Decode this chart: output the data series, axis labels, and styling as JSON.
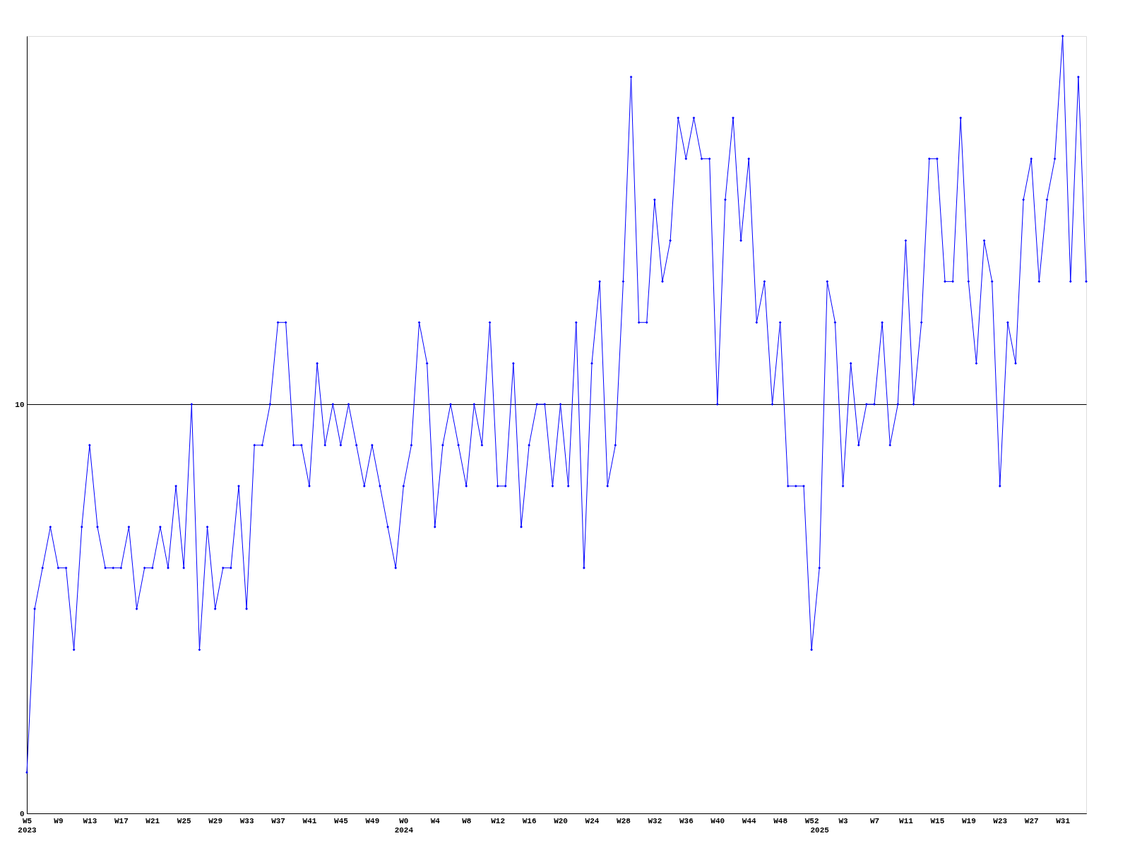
{
  "chart_data": {
    "type": "line",
    "categories": [
      "W5\n2023",
      null,
      null,
      null,
      "W9",
      null,
      null,
      null,
      "W13",
      null,
      null,
      null,
      "W17",
      null,
      null,
      null,
      "W21",
      null,
      null,
      null,
      "W25",
      null,
      null,
      null,
      "W29",
      null,
      null,
      null,
      "W33",
      null,
      null,
      null,
      "W37",
      null,
      null,
      null,
      "W41",
      null,
      null,
      null,
      "W45",
      null,
      null,
      null,
      "W49",
      null,
      null,
      null,
      "W0\n2024",
      null,
      null,
      null,
      "W4",
      null,
      null,
      null,
      "W8",
      null,
      null,
      null,
      "W12",
      null,
      null,
      null,
      "W16",
      null,
      null,
      null,
      "W20",
      null,
      null,
      null,
      "W24",
      null,
      null,
      null,
      "W28",
      null,
      null,
      null,
      "W32",
      null,
      null,
      null,
      "W36",
      null,
      null,
      null,
      "W40",
      null,
      null,
      null,
      "W44",
      null,
      null,
      null,
      "W48",
      null,
      null,
      null,
      "W52",
      "\n2025",
      null,
      null,
      "W3",
      null,
      null,
      null,
      "W7",
      null,
      null,
      null,
      "W11",
      null,
      null,
      null,
      "W15",
      null,
      null,
      null,
      "W19",
      null,
      null,
      null,
      "W23",
      null,
      null,
      null,
      "W27",
      null,
      null,
      null,
      "W31",
      null,
      null,
      null
    ],
    "series": [
      {
        "color": "#0000ff",
        "values": [
          1,
          5,
          6,
          7,
          6,
          6,
          4,
          7,
          9,
          7,
          6,
          6,
          6,
          7,
          5,
          6,
          6,
          7,
          6,
          8,
          6,
          10,
          4,
          7,
          5,
          6,
          6,
          8,
          5,
          9,
          9,
          10,
          12,
          12,
          9,
          9,
          8,
          11,
          9,
          10,
          9,
          10,
          9,
          8,
          9,
          8,
          7,
          6,
          8,
          9,
          12,
          11,
          7,
          9,
          10,
          9,
          8,
          10,
          9,
          12,
          8,
          8,
          11,
          7,
          9,
          10,
          10,
          8,
          10,
          8,
          12,
          6,
          11,
          13,
          8,
          9,
          13,
          18,
          12,
          12,
          15,
          13,
          14,
          17,
          16,
          17,
          16,
          16,
          10,
          15,
          17,
          14,
          16,
          12,
          13,
          10,
          12,
          8,
          8,
          8,
          4,
          6,
          13,
          12,
          8,
          11,
          9,
          10,
          10,
          12,
          9,
          10,
          14,
          10,
          12,
          16,
          16,
          13,
          13,
          17,
          13,
          11,
          14,
          13,
          8,
          12,
          11,
          15,
          16,
          13,
          15,
          16,
          19,
          13,
          18,
          13
        ]
      }
    ],
    "ylim": [
      0,
      19
    ],
    "yticks": [
      0,
      10
    ],
    "grid": "y",
    "marker": "diamond",
    "line_style": "solid"
  }
}
